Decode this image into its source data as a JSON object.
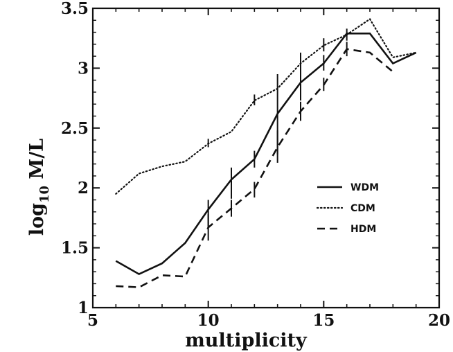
{
  "chart_data": {
    "type": "line",
    "xlabel": "multiplicity",
    "ylabel_main": "log",
    "ylabel_sub": "10",
    "ylabel_rest": " M/L",
    "xlim": [
      5,
      20
    ],
    "ylim": [
      1,
      3.5
    ],
    "xticks": [
      5,
      10,
      15,
      20
    ],
    "xtick_labels": [
      "5",
      "10",
      "15",
      "20"
    ],
    "yticks": [
      1,
      1.5,
      2,
      2.5,
      3,
      3.5
    ],
    "ytick_labels": [
      "1",
      "1.5",
      "2",
      "2.5",
      "3",
      "3.5"
    ],
    "grid": false,
    "legend_position": "right-middle",
    "series": [
      {
        "name": "WDM",
        "style": "solid",
        "x": [
          6,
          7,
          8,
          9,
          10,
          11,
          12,
          13,
          14,
          15,
          16,
          17,
          18,
          19
        ],
        "y": [
          1.39,
          1.28,
          1.37,
          1.54,
          1.82,
          2.07,
          2.24,
          2.62,
          2.88,
          3.04,
          3.29,
          3.29,
          3.04,
          3.13
        ],
        "err_low": [
          null,
          null,
          null,
          null,
          1.68,
          1.91,
          2.17,
          2.28,
          2.73,
          2.98,
          null,
          null,
          null,
          null
        ],
        "err_high": [
          null,
          null,
          null,
          null,
          1.9,
          2.17,
          2.31,
          2.95,
          3.04,
          3.11,
          null,
          null,
          null,
          null
        ]
      },
      {
        "name": "CDM",
        "style": "dotted",
        "x": [
          6,
          7,
          8,
          9,
          10,
          11,
          12,
          13,
          14,
          15,
          16,
          17,
          18,
          19
        ],
        "y": [
          1.95,
          2.12,
          2.18,
          2.22,
          2.37,
          2.47,
          2.73,
          2.83,
          3.04,
          3.19,
          3.28,
          3.41,
          3.09,
          3.13
        ],
        "err_low": [
          null,
          null,
          null,
          null,
          2.34,
          null,
          2.69,
          null,
          2.98,
          3.14,
          3.23,
          null,
          null,
          null
        ],
        "err_high": [
          null,
          null,
          null,
          null,
          2.41,
          null,
          2.78,
          null,
          3.13,
          3.25,
          3.33,
          null,
          null,
          null
        ]
      },
      {
        "name": "HDM",
        "style": "dashed",
        "x": [
          6,
          7,
          8,
          9,
          10,
          11,
          12,
          13,
          14,
          15,
          16,
          17,
          18
        ],
        "y": [
          1.18,
          1.17,
          1.27,
          1.26,
          1.67,
          1.83,
          1.99,
          2.34,
          2.64,
          2.86,
          3.16,
          3.13,
          2.97
        ],
        "err_low": [
          null,
          null,
          null,
          null,
          1.56,
          1.76,
          1.92,
          2.21,
          2.56,
          2.81,
          3.1,
          null,
          null
        ],
        "err_high": [
          null,
          null,
          null,
          null,
          1.78,
          1.9,
          2.05,
          2.48,
          2.72,
          2.92,
          3.22,
          null,
          null
        ]
      }
    ]
  }
}
